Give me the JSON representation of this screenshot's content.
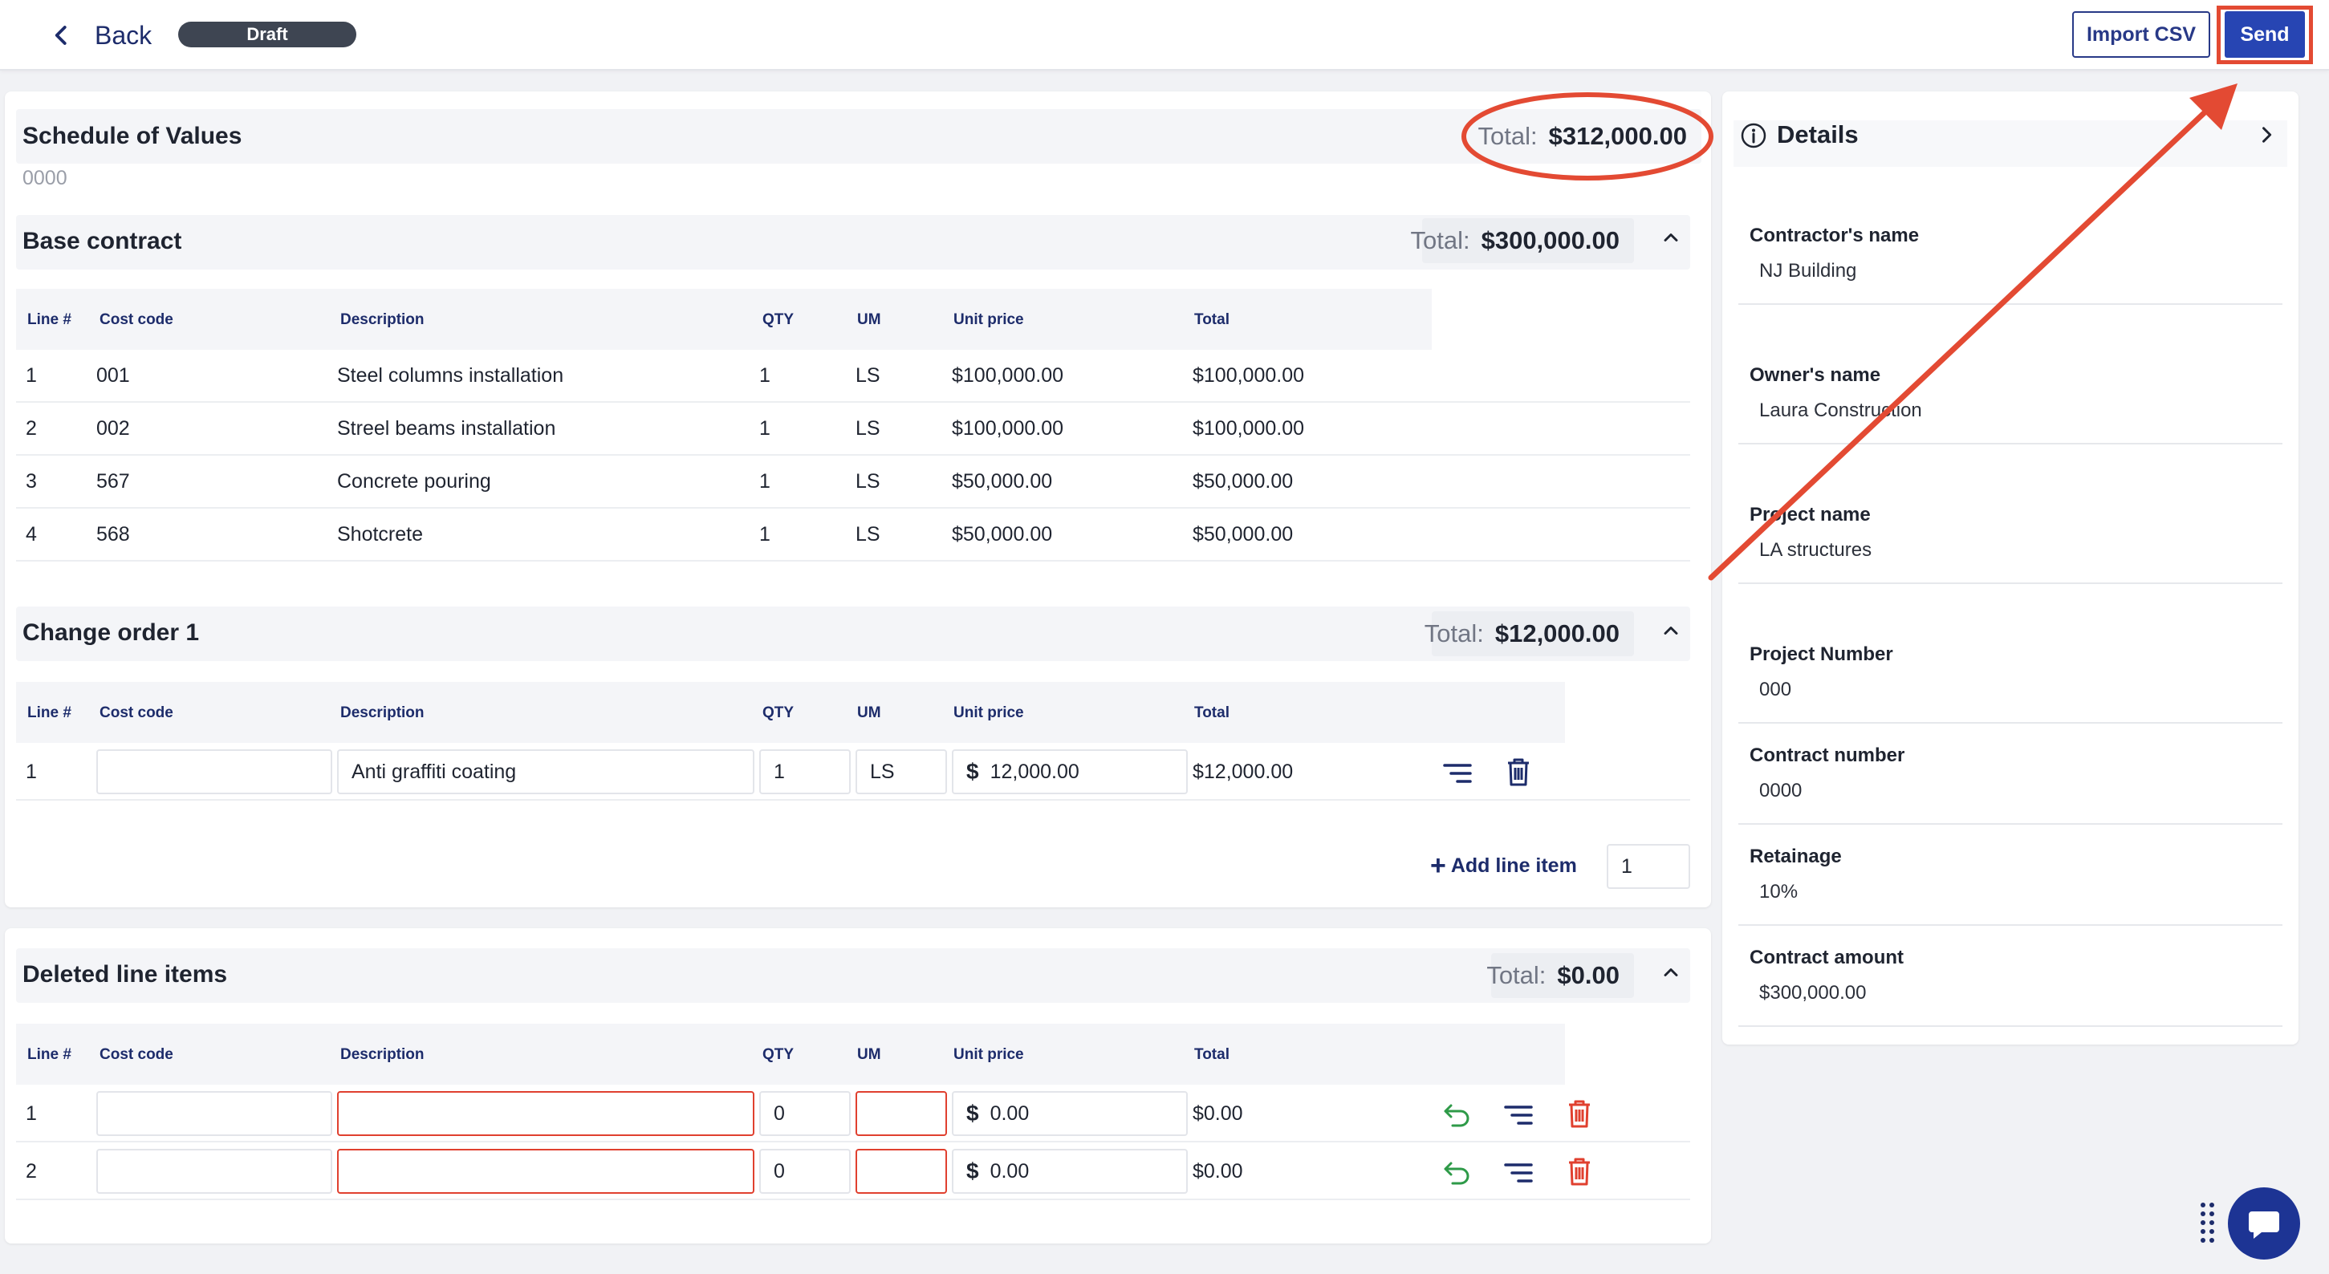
{
  "header": {
    "back_label": "Back",
    "status_badge": "Draft",
    "import_label": "Import CSV",
    "send_label": "Send"
  },
  "sov": {
    "title": "Schedule of Values",
    "number": "0000",
    "total_label": "Total:",
    "total_value": "$312,000.00"
  },
  "columns": {
    "line": "Line #",
    "cost_code": "Cost code",
    "description": "Description",
    "qty": "QTY",
    "um": "UM",
    "unit_price": "Unit price",
    "total": "Total"
  },
  "base_contract": {
    "title": "Base contract",
    "total_label": "Total:",
    "total_value": "$300,000.00",
    "rows": [
      {
        "line": "1",
        "cost_code": "001",
        "description": "Steel columns installation",
        "qty": "1",
        "um": "LS",
        "unit_price": "$100,000.00",
        "total": "$100,000.00"
      },
      {
        "line": "2",
        "cost_code": "002",
        "description": "Streel beams installation",
        "qty": "1",
        "um": "LS",
        "unit_price": "$100,000.00",
        "total": "$100,000.00"
      },
      {
        "line": "3",
        "cost_code": "567",
        "description": "Concrete pouring",
        "qty": "1",
        "um": "LS",
        "unit_price": "$50,000.00",
        "total": "$50,000.00"
      },
      {
        "line": "4",
        "cost_code": "568",
        "description": "Shotcrete",
        "qty": "1",
        "um": "LS",
        "unit_price": "$50,000.00",
        "total": "$50,000.00"
      }
    ]
  },
  "change_order": {
    "title": "Change order 1",
    "total_label": "Total:",
    "total_value": "$12,000.00",
    "row": {
      "line": "1",
      "cost_code": "",
      "description": "Anti graffiti coating",
      "qty": "1",
      "um": "LS",
      "currency": "$",
      "unit_price": "12,000.00",
      "total": "$12,000.00"
    },
    "add_line_label": "Add line item",
    "add_line_count": "1"
  },
  "deleted": {
    "title": "Deleted line items",
    "total_label": "Total:",
    "total_value": "$0.00",
    "rows": [
      {
        "line": "1",
        "cost_code": "",
        "description": "",
        "qty": "0",
        "um": "",
        "currency": "$",
        "unit_price": "0.00",
        "total": "$0.00"
      },
      {
        "line": "2",
        "cost_code": "",
        "description": "",
        "qty": "0",
        "um": "",
        "currency": "$",
        "unit_price": "0.00",
        "total": "$0.00"
      }
    ]
  },
  "details": {
    "title": "Details",
    "items": [
      {
        "label": "Contractor's name",
        "value": "NJ Building"
      },
      {
        "label": "Owner's name",
        "value": "Laura Construction"
      },
      {
        "label": "Project name",
        "value": "LA structures"
      },
      {
        "label": "Project Number",
        "value": "000"
      },
      {
        "label": "Contract number",
        "value": "0000"
      },
      {
        "label": "Retainage",
        "value": "10%"
      },
      {
        "label": "Contract amount",
        "value": "$300,000.00"
      }
    ]
  },
  "colors": {
    "primary": "#2745b3",
    "navy": "#1d2c6b",
    "annotation": "#e34a33",
    "danger": "#e0402f",
    "restore": "#2e9a48"
  }
}
